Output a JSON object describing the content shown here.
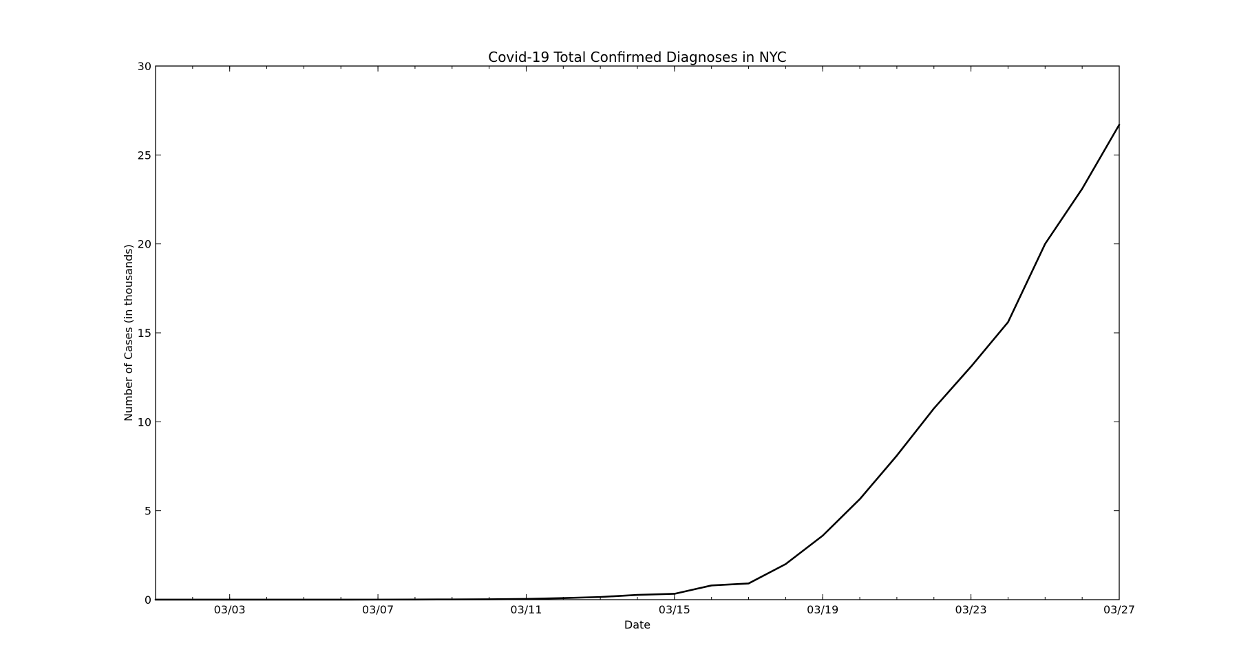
{
  "chart_data": {
    "type": "line",
    "title": "Covid-19 Total Confirmed Diagnoses in NYC",
    "xlabel": "Date",
    "ylabel": "Number of Cases (in thousands)",
    "xlim": [
      "03/01",
      "03/27"
    ],
    "ylim": [
      0,
      30
    ],
    "x_ticks": [
      "03/03",
      "03/07",
      "03/11",
      "03/15",
      "03/19",
      "03/23",
      "03/27"
    ],
    "y_ticks": [
      0,
      5,
      10,
      15,
      20,
      25,
      30
    ],
    "grid": false,
    "line_color": "#000000",
    "series": [
      {
        "x": [
          "03/01",
          "03/02",
          "03/03",
          "03/04",
          "03/05",
          "03/06",
          "03/07",
          "03/08",
          "03/09",
          "03/10",
          "03/11",
          "03/12",
          "03/13",
          "03/14",
          "03/15",
          "03/16",
          "03/17",
          "03/18",
          "03/19",
          "03/20",
          "03/21",
          "03/22",
          "03/23",
          "03/24",
          "03/25",
          "03/26",
          "03/27"
        ],
        "values": [
          0.001,
          0.001,
          0.001,
          0.001,
          0.002,
          0.003,
          0.005,
          0.008,
          0.012,
          0.02,
          0.04,
          0.09,
          0.15,
          0.27,
          0.33,
          0.8,
          0.91,
          2.0,
          3.6,
          5.65,
          8.1,
          10.75,
          13.1,
          15.6,
          20.0,
          23.1,
          26.7
        ]
      }
    ]
  }
}
